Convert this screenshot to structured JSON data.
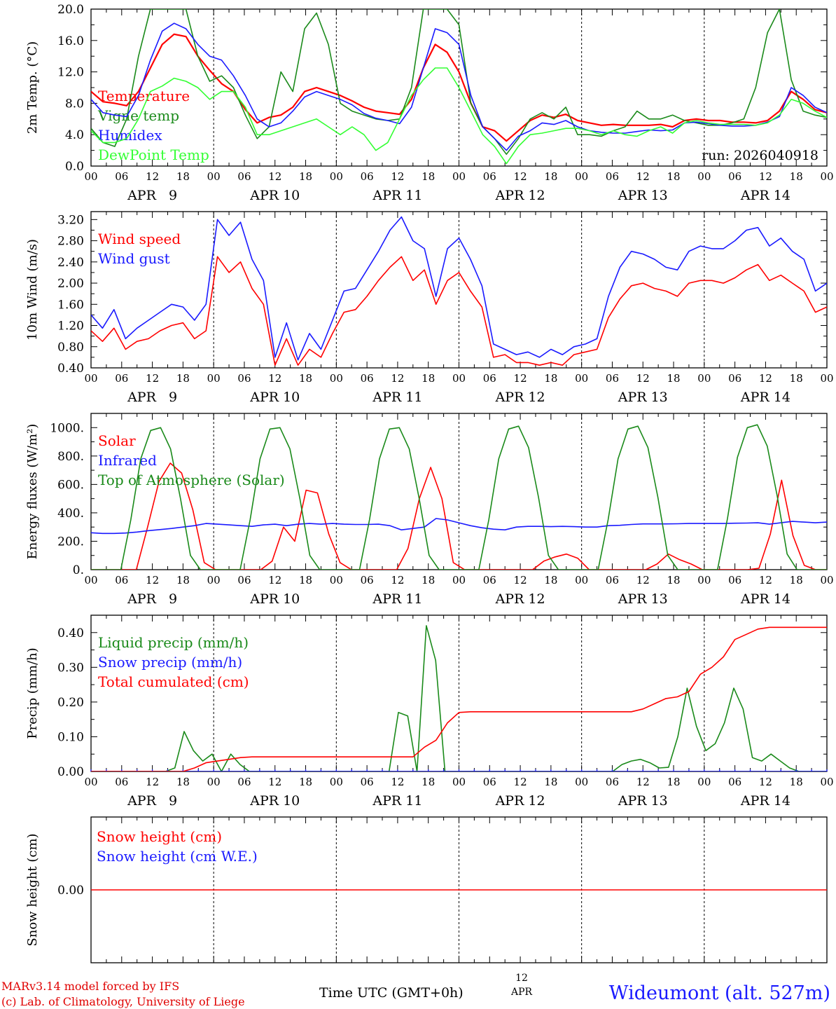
{
  "chart_data": [
    {
      "type": "line",
      "id": "temperature",
      "ylabel": "2m Temp. (°C)",
      "ylim": [
        0,
        20
      ],
      "yticks": [
        0,
        4,
        8,
        12,
        16,
        20
      ],
      "ytick_labels": [
        "0.0",
        "4.0",
        "8.0",
        "12.0",
        "16.0",
        "20.0"
      ],
      "annotation": "run: 2026040918",
      "x_step_hours": 3,
      "series": [
        {
          "name": "Temperature",
          "color": "#ff0000",
          "values": [
            9.5,
            8.2,
            8,
            7.7,
            9.5,
            12.5,
            15.5,
            16.8,
            16.5,
            14,
            12.2,
            10.5,
            9.5,
            7.2,
            5.5,
            6.2,
            6.5,
            7.5,
            9.5,
            10,
            9.5,
            9,
            8.3,
            7.5,
            7,
            6.8,
            6.6,
            8.5,
            12.5,
            15.5,
            14.5,
            12,
            8,
            5,
            4.5,
            3.2,
            4.5,
            5.8,
            6.5,
            6.2,
            6.6,
            5.8,
            5.5,
            5.2,
            5.3,
            5.2,
            5.2,
            5.2,
            5.3,
            5,
            5.8,
            6,
            5.8,
            5.8,
            5.6,
            5.6,
            5.5,
            5.8,
            7,
            9.5,
            8.5,
            7.2,
            6.8
          ]
        },
        {
          "name": "Vigne temp",
          "color": "#1a8a1a",
          "values": [
            4.8,
            3,
            2.5,
            6,
            14,
            20,
            20,
            20,
            20,
            14,
            10.8,
            11.5,
            10,
            6.5,
            3.5,
            5,
            12,
            9.5,
            17.5,
            19.5,
            15.5,
            8,
            7,
            6.5,
            6,
            5.8,
            6,
            10,
            20,
            20,
            20,
            18,
            8,
            5,
            3.5,
            1.5,
            3.5,
            6,
            6.8,
            6,
            7.5,
            4,
            4,
            3.8,
            4.5,
            5,
            7,
            6,
            6,
            6.5,
            5.8,
            5.5,
            5.2,
            5.2,
            5.5,
            6,
            10,
            17,
            20,
            11,
            7,
            6.5,
            6.2
          ]
        },
        {
          "name": "Humidex",
          "color": "#1a1aff",
          "values": [
            8.5,
            6.8,
            6.5,
            6.3,
            9,
            13.5,
            17.2,
            18.2,
            17.5,
            15.5,
            14,
            13.5,
            11.5,
            9,
            6,
            5,
            5.5,
            7,
            8.8,
            9.5,
            9,
            8.5,
            7.8,
            6.7,
            6.1,
            5.8,
            5.4,
            7.5,
            12.5,
            17.5,
            17,
            15.5,
            9,
            5,
            3.5,
            2,
            3.8,
            4.5,
            5.5,
            5.3,
            5.8,
            5,
            4.5,
            4.3,
            4.2,
            4.2,
            4.4,
            4.6,
            4.5,
            4.6,
            5.5,
            5.6,
            5.4,
            5.2,
            5.1,
            5.1,
            5.2,
            5.6,
            6.3,
            10,
            9,
            7.5,
            6.8
          ]
        },
        {
          "name": "DewPoint Temp",
          "color": "#33ff33",
          "values": [
            4.5,
            3,
            3,
            3.5,
            6,
            9.5,
            10.2,
            11.2,
            10.8,
            10,
            8.5,
            9.5,
            9.5,
            7.5,
            4,
            4,
            4.5,
            5,
            5.5,
            6,
            5,
            4,
            5,
            4,
            2,
            3,
            6,
            9,
            11,
            12.5,
            12.5,
            10,
            7,
            4,
            2.5,
            0.3,
            2.5,
            4,
            4.2,
            4.5,
            4.8,
            4.8,
            4.5,
            4,
            4.5,
            4,
            3.8,
            4.5,
            5,
            4.2,
            5.5,
            5.8,
            5.5,
            5.3,
            5.3,
            5.3,
            5.2,
            5.5,
            6.5,
            8.5,
            8,
            7,
            6.2
          ]
        }
      ]
    },
    {
      "type": "line",
      "id": "wind",
      "ylabel": "10m Wind (m/s)",
      "ylim": [
        0.4,
        3.35
      ],
      "yticks": [
        0.4,
        0.8,
        1.2,
        1.6,
        2.0,
        2.4,
        2.8,
        3.2
      ],
      "ytick_labels": [
        "0.40",
        "0.80",
        "1.20",
        "1.60",
        "2.00",
        "2.40",
        "2.80",
        "3.20"
      ],
      "x_step_hours": 3,
      "series": [
        {
          "name": "Wind speed",
          "color": "#ff0000",
          "values": [
            1.1,
            0.9,
            1.15,
            0.75,
            0.9,
            0.95,
            1.1,
            1.2,
            1.25,
            0.95,
            1.1,
            2.5,
            2.2,
            2.4,
            1.9,
            1.6,
            0.45,
            0.95,
            0.45,
            0.75,
            0.6,
            1.05,
            1.45,
            1.5,
            1.75,
            2.05,
            2.3,
            2.5,
            2.05,
            2.25,
            1.6,
            2.05,
            2.2,
            1.85,
            1.55,
            0.6,
            0.65,
            0.5,
            0.5,
            0.45,
            0.5,
            0.45,
            0.65,
            0.7,
            0.75,
            1.35,
            1.7,
            1.95,
            2,
            1.9,
            1.85,
            1.75,
            2,
            2.05,
            2.05,
            2,
            2.1,
            2.25,
            2.35,
            2.05,
            2.15,
            2,
            1.85,
            1.45,
            1.55
          ]
        },
        {
          "name": "Wind gust",
          "color": "#1a1aff",
          "values": [
            1.4,
            1.15,
            1.5,
            0.95,
            1.15,
            1.3,
            1.45,
            1.6,
            1.55,
            1.3,
            1.6,
            3.2,
            2.9,
            3.15,
            2.45,
            2.05,
            0.6,
            1.25,
            0.55,
            1.05,
            0.75,
            1.3,
            1.85,
            1.9,
            2.25,
            2.6,
            3,
            3.25,
            2.8,
            2.65,
            1.75,
            2.65,
            2.85,
            2.45,
            1.95,
            0.85,
            0.75,
            0.65,
            0.7,
            0.6,
            0.75,
            0.65,
            0.8,
            0.85,
            0.95,
            1.75,
            2.3,
            2.6,
            2.55,
            2.45,
            2.3,
            2.25,
            2.6,
            2.7,
            2.65,
            2.65,
            2.8,
            3,
            3.05,
            2.7,
            2.85,
            2.6,
            2.45,
            1.85,
            2
          ]
        }
      ]
    },
    {
      "type": "line",
      "id": "energy",
      "ylabel": "Energy fluxes (W/m²)",
      "ylim": [
        0,
        1100
      ],
      "yticks": [
        0,
        200,
        400,
        600,
        800,
        1000
      ],
      "ytick_labels": [
        "0.",
        "200.",
        "400.",
        "600.",
        "800.",
        "1000."
      ],
      "x_step_hours": 3,
      "series": [
        {
          "name": "Solar",
          "color": "#ff0000",
          "values": [
            0,
            0,
            0,
            0,
            0,
            300,
            620,
            750,
            680,
            420,
            50,
            0,
            0,
            0,
            0,
            0,
            60,
            300,
            200,
            560,
            540,
            250,
            50,
            0,
            0,
            0,
            0,
            0,
            150,
            500,
            720,
            500,
            50,
            0,
            0,
            0,
            0,
            0,
            0,
            0,
            60,
            90,
            110,
            80,
            0,
            0,
            0,
            0,
            0,
            0,
            40,
            110,
            70,
            40,
            0,
            0,
            0,
            0,
            0,
            10,
            250,
            630,
            240,
            30,
            0,
            0
          ]
        },
        {
          "name": "Infrared",
          "color": "#1a1aff",
          "values": [
            260,
            255,
            255,
            258,
            265,
            275,
            282,
            290,
            300,
            310,
            325,
            320,
            315,
            310,
            305,
            315,
            320,
            310,
            320,
            325,
            320,
            325,
            320,
            318,
            318,
            320,
            310,
            280,
            290,
            300,
            360,
            350,
            330,
            310,
            295,
            285,
            280,
            300,
            305,
            305,
            303,
            305,
            303,
            300,
            300,
            310,
            312,
            318,
            322,
            322,
            322,
            323,
            325,
            325,
            325,
            325,
            327,
            328,
            330,
            320,
            330,
            340,
            335,
            330,
            335
          ]
        },
        {
          "name": "Top of Atmosphere (Solar)",
          "color": "#1a8a1a",
          "values": [
            0,
            0,
            0,
            0,
            350,
            780,
            980,
            1000,
            850,
            500,
            100,
            0,
            0,
            0,
            0,
            0,
            350,
            780,
            990,
            1000,
            850,
            500,
            100,
            0,
            0,
            0,
            0,
            0,
            350,
            780,
            990,
            1000,
            850,
            500,
            100,
            0,
            0,
            0,
            0,
            0,
            350,
            780,
            990,
            1010,
            860,
            510,
            100,
            0,
            0,
            0,
            0,
            0,
            350,
            780,
            990,
            1010,
            860,
            510,
            100,
            0,
            0,
            0,
            0,
            0,
            360,
            790,
            1000,
            1020,
            870,
            520,
            110,
            0,
            0,
            0,
            0
          ]
        }
      ]
    },
    {
      "type": "line",
      "id": "precip",
      "ylabel": "Precip (mm/h)",
      "ylim": [
        0,
        0.45
      ],
      "yticks": [
        0,
        0.1,
        0.2,
        0.3,
        0.4
      ],
      "ytick_labels": [
        "0.00",
        "0.10",
        "0.20",
        "0.30",
        "0.40"
      ],
      "x_step_hours": 3,
      "series": [
        {
          "name": "Liquid precip (mm/h)",
          "color": "#1a8a1a",
          "values": [
            0,
            0,
            0,
            0,
            0,
            0,
            0,
            0,
            0,
            0.01,
            0.115,
            0.06,
            0.03,
            0.05,
            0,
            0.05,
            0.02,
            0,
            0,
            0,
            0,
            0,
            0,
            0,
            0,
            0,
            0,
            0,
            0,
            0,
            0,
            0,
            0,
            0.17,
            0.16,
            0,
            0.42,
            0.32,
            0,
            0,
            0,
            0,
            0,
            0,
            0,
            0,
            0,
            0,
            0,
            0,
            0,
            0,
            0,
            0,
            0,
            0,
            0,
            0.02,
            0.03,
            0.035,
            0.025,
            0.01,
            0.012,
            0.1,
            0.24,
            0.13,
            0.06,
            0.08,
            0.14,
            0.24,
            0.18,
            0.04,
            0.03,
            0.05,
            0.03,
            0.01,
            0,
            0,
            0,
            0
          ]
        },
        {
          "name": "Snow precip (mm/h)",
          "color": "#1a1aff",
          "values": [
            0,
            0,
            0,
            0,
            0,
            0,
            0,
            0,
            0,
            0,
            0,
            0,
            0,
            0,
            0,
            0,
            0,
            0,
            0,
            0,
            0,
            0,
            0,
            0,
            0,
            0,
            0,
            0,
            0,
            0,
            0,
            0,
            0,
            0,
            0,
            0,
            0,
            0,
            0,
            0,
            0,
            0,
            0,
            0,
            0,
            0,
            0,
            0,
            0,
            0,
            0,
            0,
            0,
            0,
            0,
            0,
            0,
            0,
            0,
            0,
            0,
            0,
            0,
            0,
            0
          ]
        },
        {
          "name": "Total cumulated (cm)",
          "color": "#ff0000",
          "values": [
            0,
            0,
            0,
            0,
            0,
            0,
            0,
            0,
            0,
            0.01,
            0.025,
            0.03,
            0.035,
            0.04,
            0.042,
            0.042,
            0.042,
            0.042,
            0.042,
            0.042,
            0.042,
            0.042,
            0.042,
            0.042,
            0.042,
            0.042,
            0.042,
            0.042,
            0.042,
            0.07,
            0.09,
            0.14,
            0.17,
            0.172,
            0.172,
            0.172,
            0.172,
            0.172,
            0.172,
            0.172,
            0.172,
            0.172,
            0.172,
            0.172,
            0.172,
            0.172,
            0.172,
            0.172,
            0.18,
            0.195,
            0.21,
            0.215,
            0.23,
            0.28,
            0.3,
            0.33,
            0.38,
            0.395,
            0.41,
            0.415,
            0.415,
            0.415,
            0.415,
            0.415,
            0.415
          ]
        }
      ]
    },
    {
      "type": "line",
      "id": "snow",
      "ylabel": "Snow height (cm)",
      "ylim": [
        -1,
        1
      ],
      "yticks": [
        0
      ],
      "ytick_labels": [
        "0.00"
      ],
      "x_step_hours": 3,
      "series": [
        {
          "name": "Snow height (cm)",
          "color": "#ff0000",
          "values": [
            0,
            0
          ]
        },
        {
          "name": "Snow height (cm W.E.)",
          "color": "#1a1aff",
          "values": []
        }
      ]
    }
  ],
  "x_axis": {
    "hour_labels": [
      "00",
      "06",
      "12",
      "18"
    ],
    "end_label": "00",
    "days": [
      "APR   9",
      "APR 10",
      "APR 11",
      "APR 12",
      "APR 13",
      "APR 14"
    ],
    "ref_hour": "12",
    "ref_month": "APR"
  },
  "footer": {
    "model_line": "MARv3.14 model forced by IFS",
    "credit_line": "(c) Lab. of Climatology, University of Liege",
    "time_label": "Time UTC (GMT+0h)",
    "station": "Wideumont (alt. 527m)"
  }
}
